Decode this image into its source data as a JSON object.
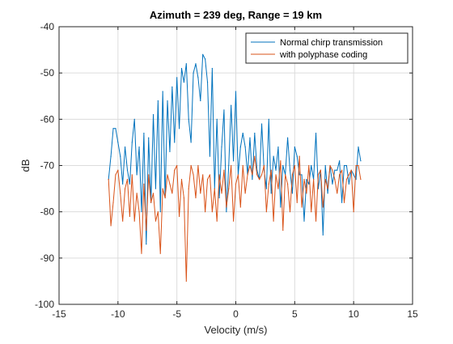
{
  "chart_data": {
    "type": "line",
    "title": "Azimuth = 239 deg, Range = 19 km",
    "xlabel": "Velocity (m/s)",
    "ylabel": "dB",
    "xlim": [
      -15,
      15
    ],
    "ylim": [
      -100,
      -40
    ],
    "xticks": [
      -15,
      -10,
      -5,
      0,
      5,
      10,
      15
    ],
    "yticks": [
      -40,
      -50,
      -60,
      -70,
      -80,
      -90,
      -100
    ],
    "grid": true,
    "legend_position": "top-right",
    "series": [
      {
        "name": "Normal chirp transmission",
        "color": "#0072BD",
        "x": [
          -10.8,
          -10.6,
          -10.4,
          -10.2,
          -10.0,
          -9.8,
          -9.6,
          -9.4,
          -9.2,
          -9.0,
          -8.8,
          -8.6,
          -8.4,
          -8.2,
          -8.0,
          -7.8,
          -7.6,
          -7.4,
          -7.2,
          -7.0,
          -6.8,
          -6.6,
          -6.4,
          -6.2,
          -6.0,
          -5.8,
          -5.6,
          -5.4,
          -5.2,
          -5.0,
          -4.8,
          -4.6,
          -4.4,
          -4.2,
          -4.0,
          -3.8,
          -3.6,
          -3.4,
          -3.2,
          -3.0,
          -2.8,
          -2.6,
          -2.4,
          -2.2,
          -2.0,
          -1.8,
          -1.6,
          -1.4,
          -1.2,
          -1.0,
          -0.8,
          -0.6,
          -0.4,
          -0.2,
          0.0,
          0.2,
          0.4,
          0.6,
          0.8,
          1.0,
          1.2,
          1.4,
          1.6,
          1.8,
          2.0,
          2.2,
          2.4,
          2.6,
          2.8,
          3.0,
          3.2,
          3.4,
          3.6,
          3.8,
          4.0,
          4.2,
          4.4,
          4.6,
          4.8,
          5.0,
          5.2,
          5.4,
          5.6,
          5.8,
          6.0,
          6.2,
          6.4,
          6.6,
          6.8,
          7.0,
          7.2,
          7.4,
          7.6,
          7.8,
          8.0,
          8.2,
          8.4,
          8.6,
          8.8,
          9.0,
          9.2,
          9.4,
          9.6,
          9.8,
          10.0,
          10.2,
          10.4,
          10.6
        ],
        "values": [
          -73,
          -68,
          -62,
          -62,
          -65,
          -68,
          -74,
          -66,
          -71,
          -74,
          -65,
          -60,
          -72,
          -66,
          -80,
          -63,
          -87,
          -64,
          -78,
          -59,
          -75,
          -56,
          -80,
          -54,
          -77,
          -56,
          -67,
          -53,
          -65,
          -51,
          -62,
          -49,
          -52,
          -48,
          -60,
          -65,
          -50,
          -48,
          -51,
          -56,
          -46,
          -47,
          -52,
          -68,
          -49,
          -75,
          -60,
          -77,
          -66,
          -58,
          -80,
          -70,
          -57,
          -69,
          -54,
          -72,
          -66,
          -63,
          -66,
          -72,
          -64,
          -73,
          -63,
          -71,
          -73,
          -61,
          -71,
          -75,
          -60,
          -76,
          -68,
          -71,
          -66,
          -79,
          -70,
          -72,
          -64,
          -71,
          -76,
          -66,
          -68,
          -72,
          -72,
          -82,
          -73,
          -74,
          -70,
          -73,
          -63,
          -75,
          -71,
          -85,
          -70,
          -76,
          -70,
          -74,
          -71,
          -71,
          -69,
          -78,
          -70,
          -70,
          -74,
          -71,
          -72,
          -73,
          -66,
          -69
        ]
      },
      {
        "name": "with polyphase coding",
        "color": "#D95319",
        "x": [
          -10.8,
          -10.6,
          -10.4,
          -10.2,
          -10.0,
          -9.8,
          -9.6,
          -9.4,
          -9.2,
          -9.0,
          -8.8,
          -8.6,
          -8.4,
          -8.2,
          -8.0,
          -7.8,
          -7.6,
          -7.4,
          -7.2,
          -7.0,
          -6.8,
          -6.6,
          -6.4,
          -6.2,
          -6.0,
          -5.8,
          -5.6,
          -5.4,
          -5.2,
          -5.0,
          -4.8,
          -4.6,
          -4.4,
          -4.2,
          -4.0,
          -3.8,
          -3.6,
          -3.4,
          -3.2,
          -3.0,
          -2.8,
          -2.6,
          -2.4,
          -2.2,
          -2.0,
          -1.8,
          -1.6,
          -1.4,
          -1.2,
          -1.0,
          -0.8,
          -0.6,
          -0.4,
          -0.2,
          0.0,
          0.2,
          0.4,
          0.6,
          0.8,
          1.0,
          1.2,
          1.4,
          1.6,
          1.8,
          2.0,
          2.2,
          2.4,
          2.6,
          2.8,
          3.0,
          3.2,
          3.4,
          3.6,
          3.8,
          4.0,
          4.2,
          4.4,
          4.6,
          4.8,
          5.0,
          5.2,
          5.4,
          5.6,
          5.8,
          6.0,
          6.2,
          6.4,
          6.6,
          6.8,
          7.0,
          7.2,
          7.4,
          7.6,
          7.8,
          8.0,
          8.2,
          8.4,
          8.6,
          8.8,
          9.0,
          9.2,
          9.4,
          9.6,
          9.8,
          10.0,
          10.2,
          10.4,
          10.6
        ],
        "values": [
          -73,
          -83,
          -78,
          -72,
          -71,
          -76,
          -82,
          -75,
          -73,
          -81,
          -72,
          -82,
          -76,
          -80,
          -89,
          -74,
          -84,
          -72,
          -78,
          -76,
          -82,
          -80,
          -89,
          -75,
          -77,
          -72,
          -74,
          -76,
          -71,
          -70,
          -81,
          -73,
          -77,
          -95,
          -75,
          -70,
          -72,
          -77,
          -70,
          -76,
          -72,
          -80,
          -73,
          -72,
          -80,
          -75,
          -82,
          -72,
          -76,
          -71,
          -79,
          -75,
          -70,
          -82,
          -74,
          -72,
          -79,
          -70,
          -76,
          -72,
          -70,
          -72,
          -68,
          -72,
          -73,
          -72,
          -70,
          -80,
          -74,
          -71,
          -82,
          -72,
          -75,
          -69,
          -84,
          -72,
          -74,
          -80,
          -72,
          -70,
          -78,
          -68,
          -79,
          -73,
          -76,
          -70,
          -80,
          -73,
          -82,
          -72,
          -71,
          -79,
          -73,
          -75,
          -70,
          -71,
          -73,
          -76,
          -72,
          -71,
          -78,
          -73,
          -72,
          -71,
          -80,
          -70,
          -70,
          -73
        ]
      }
    ]
  }
}
